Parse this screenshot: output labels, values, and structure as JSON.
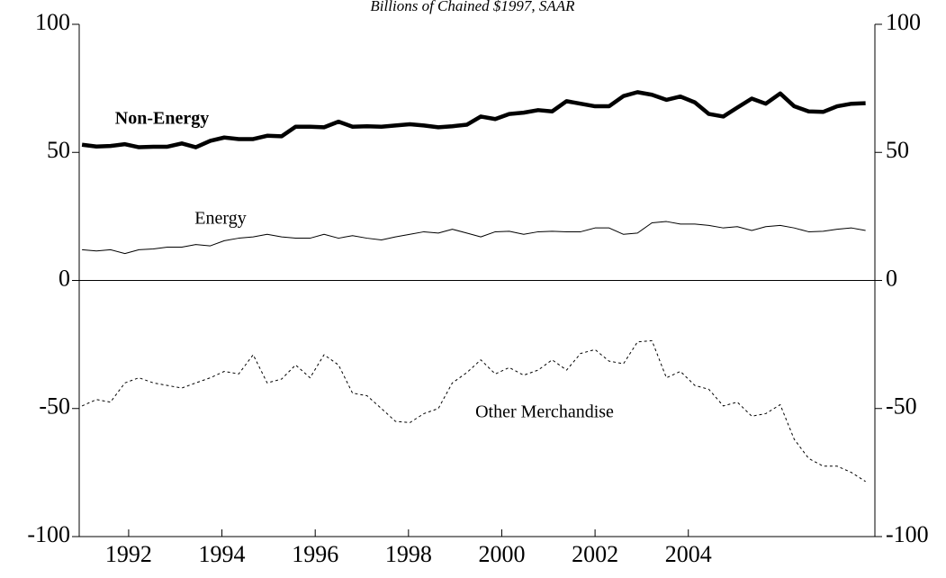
{
  "chart_data": {
    "type": "line",
    "subtitle": "Billions of Chained $1997, SAAR",
    "x": [
      1991.0,
      1991.31,
      1991.61,
      1991.92,
      1992.22,
      1992.53,
      1992.83,
      1993.14,
      1993.44,
      1993.75,
      1994.05,
      1994.36,
      1994.67,
      1994.97,
      1995.28,
      1995.58,
      1995.89,
      1996.19,
      1996.5,
      1996.8,
      1997.11,
      1997.42,
      1997.72,
      1998.03,
      1998.33,
      1998.64,
      1998.94,
      1999.25,
      1999.55,
      1999.86,
      2000.16,
      2000.47,
      2000.78,
      2001.08,
      2001.39,
      2001.69,
      2002.0,
      2002.3,
      2002.61,
      2002.91,
      2003.22,
      2003.53,
      2003.83,
      2004.14,
      2004.44,
      2004.75,
      2005.05,
      2005.36,
      2005.66,
      2005.97,
      2006.27,
      2006.58,
      2006.89,
      2007.19,
      2007.5,
      2007.8
    ],
    "series": [
      {
        "name": "Non-Energy",
        "color": "#000000",
        "values": [
          53,
          52.3,
          52.5,
          53.2,
          52,
          52.2,
          52.2,
          53.5,
          52,
          54.5,
          55.8,
          55.2,
          55.2,
          56.5,
          56.3,
          60,
          60,
          59.8,
          62,
          60,
          60.2,
          60,
          60.5,
          61,
          60.5,
          59.8,
          60.2,
          60.8,
          64,
          63,
          65,
          65.5,
          66.5,
          66,
          70,
          69,
          68,
          68,
          72,
          73.5,
          72.5,
          70.5,
          71.8,
          69.5,
          65,
          64,
          67.5,
          71,
          69,
          73,
          68,
          66,
          65.8,
          68,
          69,
          69.2
        ]
      },
      {
        "name": "Energy",
        "color": "#000000",
        "values": [
          12,
          11.5,
          12,
          10.5,
          12,
          12.3,
          13,
          13,
          14,
          13.5,
          15.5,
          16.5,
          17,
          18,
          17,
          16.5,
          16.5,
          18,
          16.5,
          17.5,
          16.5,
          15.8,
          17,
          18,
          19,
          18.5,
          20,
          18.5,
          17,
          19,
          19.2,
          18,
          19,
          19.2,
          19,
          19,
          20.5,
          20.5,
          18,
          18.5,
          22.5,
          23,
          22,
          22,
          21.5,
          20.5,
          21,
          19.5,
          21,
          21.5,
          20.5,
          19,
          19.2,
          20,
          20.5,
          19.5
        ]
      },
      {
        "name": "Other Merchandise",
        "color": "#000000",
        "values": [
          -49,
          -46.5,
          -47.5,
          -40,
          -38,
          -40,
          -41,
          -42,
          -40,
          -38,
          -35.5,
          -36.5,
          -29,
          -40,
          -38.5,
          -33,
          -38,
          -29,
          -33,
          -44,
          -45,
          -50,
          -55,
          -55.5,
          -52,
          -50,
          -40,
          -36,
          -31,
          -36.5,
          -34,
          -37,
          -35,
          -31,
          -35,
          -28.5,
          -27,
          -31.5,
          -32.5,
          -24,
          -23.5,
          -38,
          -35.5,
          -41,
          -42.5,
          -49,
          -47.5,
          -53,
          -52,
          -48.5,
          -62,
          -69.5,
          -72.5,
          -72.5,
          -75,
          -78.5
        ]
      }
    ],
    "xlim": [
      1990.94,
      2008
    ],
    "xticks": [
      1992,
      1994,
      1996,
      1998,
      2000,
      2002,
      2004
    ],
    "ylim": [
      -100,
      100
    ],
    "yticks": [
      -100,
      -50,
      0,
      50,
      100
    ],
    "y2lim": [
      -100,
      100
    ],
    "y2ticks": [
      -100,
      -50,
      0,
      50,
      100
    ]
  }
}
